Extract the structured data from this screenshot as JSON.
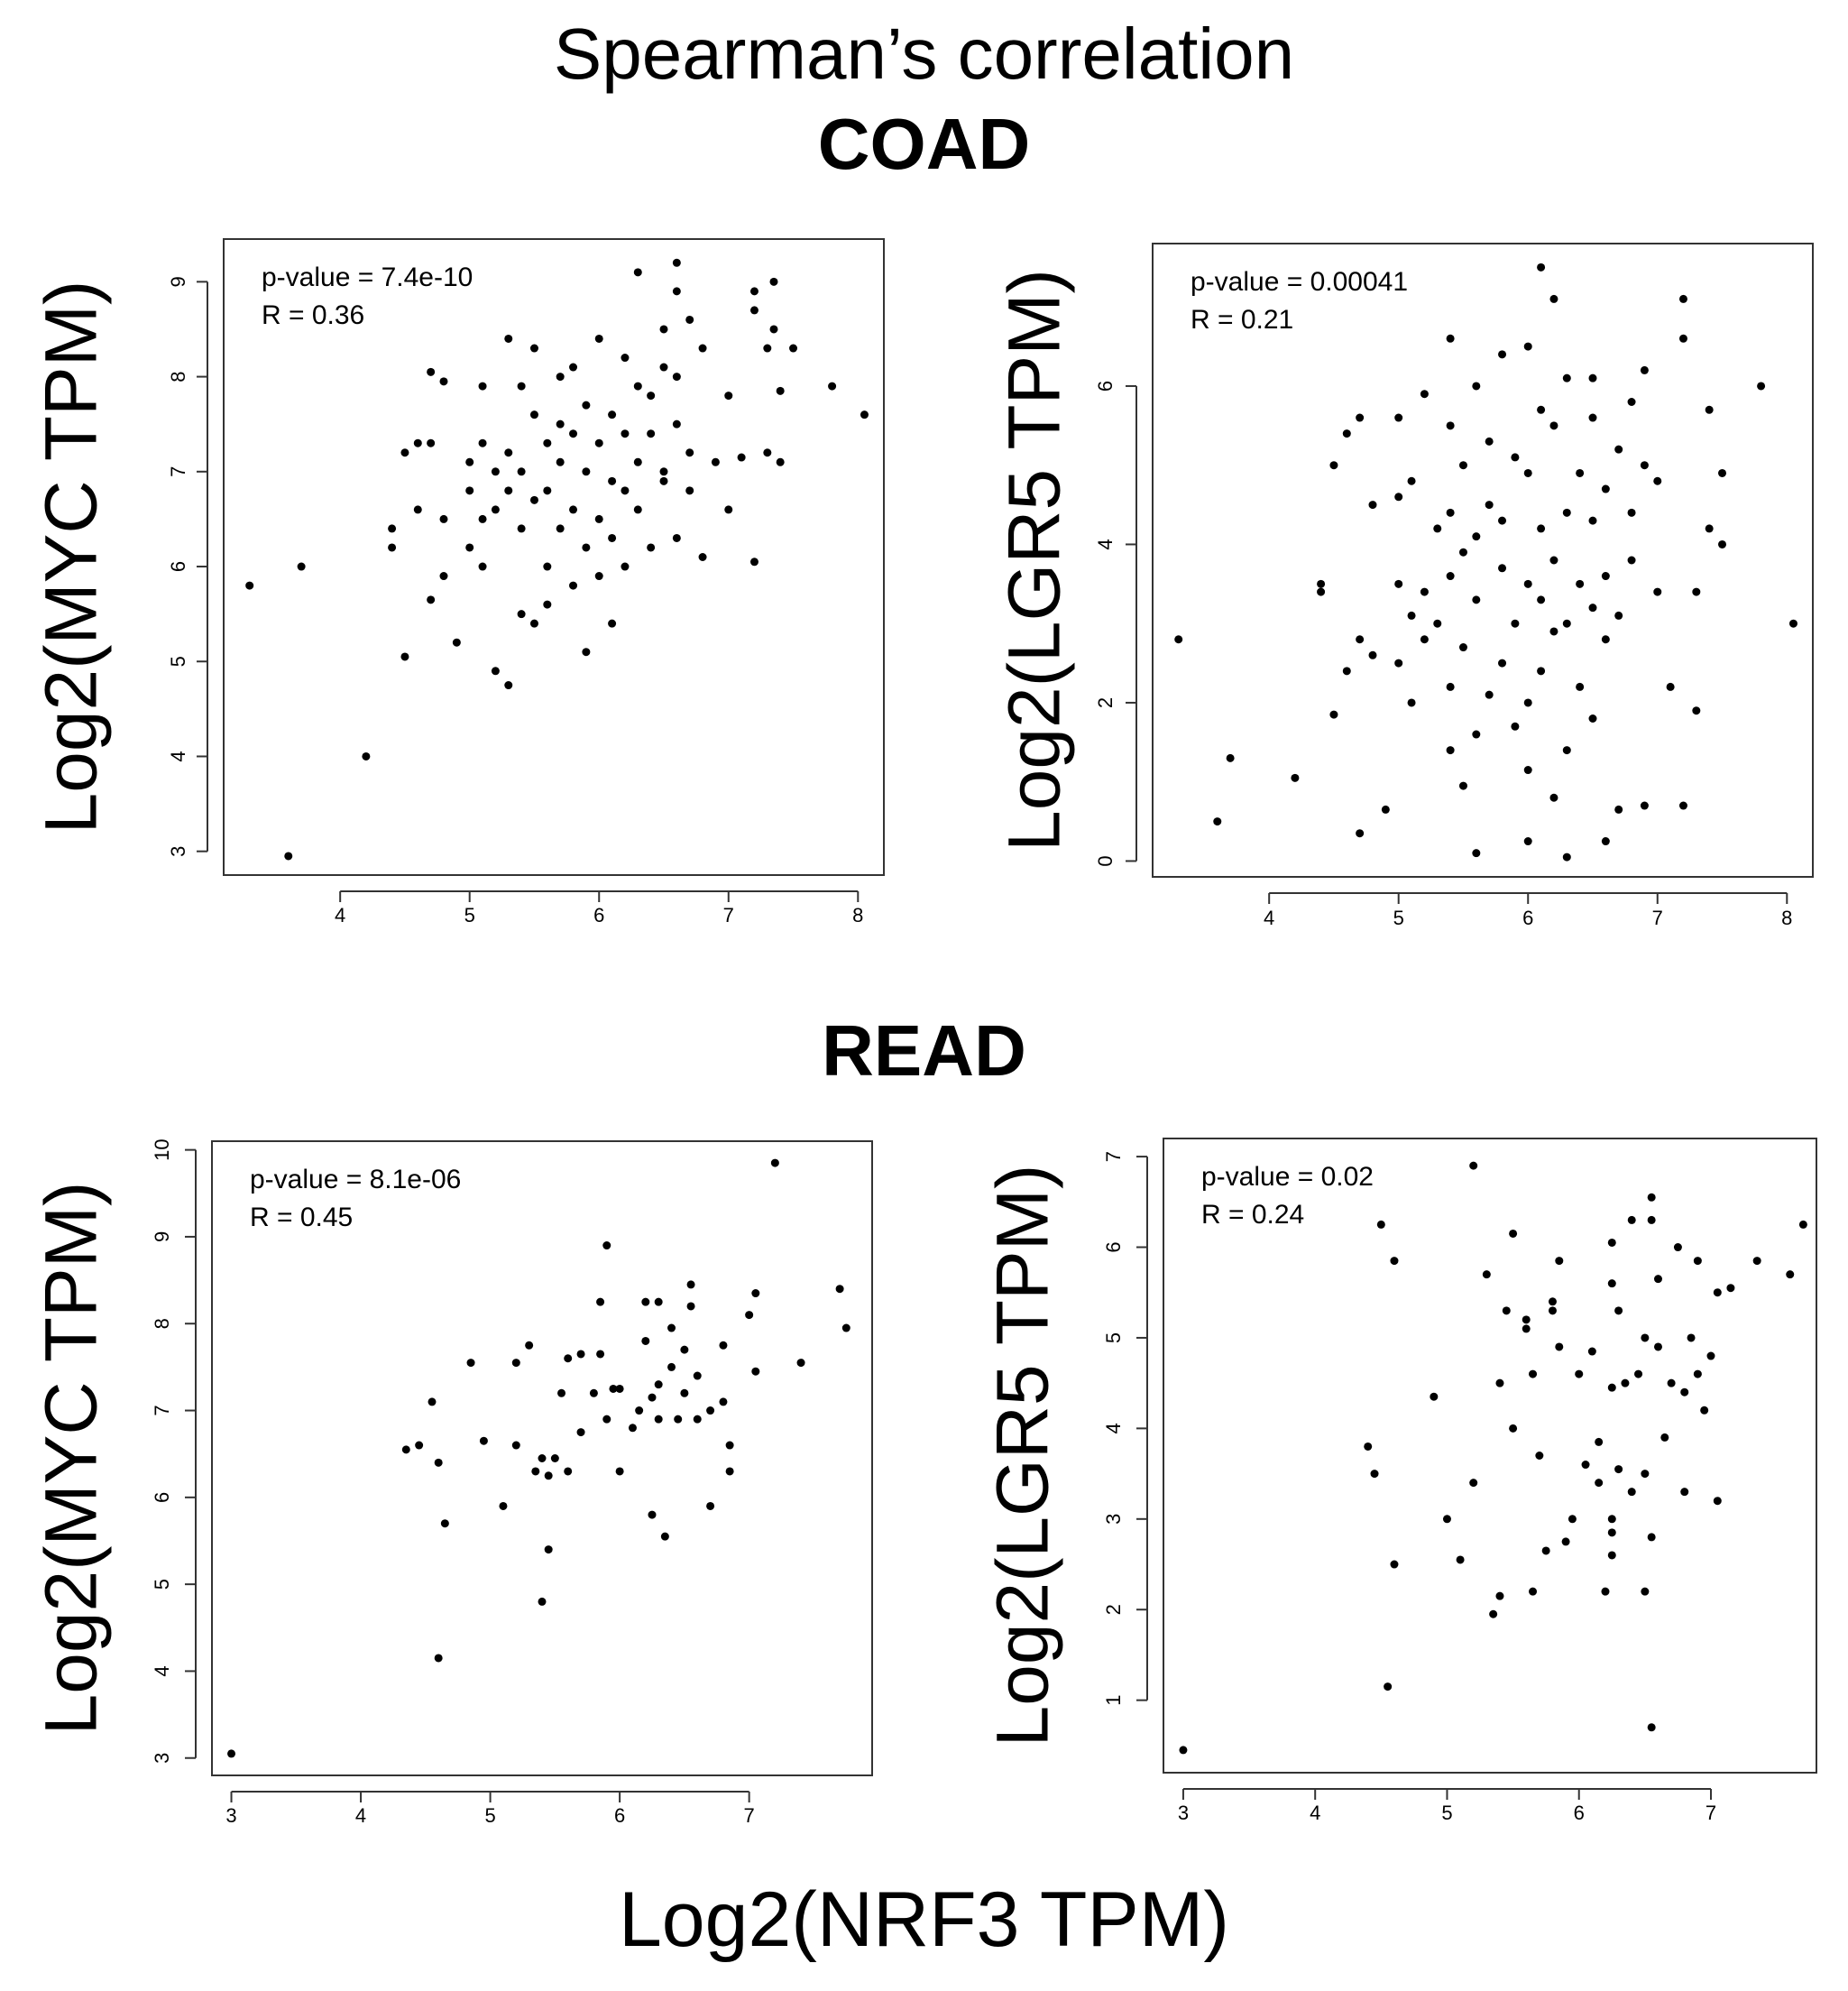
{
  "figure": {
    "title": "Spearman’s correlation",
    "section_top": "COAD",
    "section_bottom": "READ",
    "shared_xlabel": "Log2(NRF3 TPM)"
  },
  "chart_data": [
    {
      "type": "scatter",
      "group": "COAD",
      "ylabel": "Log2(MYC TPM)",
      "xlabel": "Log2(NRF3 TPM)",
      "xlim": [
        3.1,
        8.2
      ],
      "ylim": [
        2.75,
        9.45
      ],
      "xticks": [
        4,
        5,
        6,
        7,
        8
      ],
      "yticks": [
        3,
        4,
        5,
        6,
        7,
        8,
        9
      ],
      "annotation": [
        "p-value = 7.4e-10",
        "R = 0.36"
      ],
      "points": [
        [
          3.3,
          5.8
        ],
        [
          3.6,
          2.95
        ],
        [
          3.7,
          6.0
        ],
        [
          4.2,
          4.0
        ],
        [
          4.4,
          6.2
        ],
        [
          4.4,
          6.4
        ],
        [
          4.5,
          5.05
        ],
        [
          4.5,
          7.2
        ],
        [
          4.6,
          7.3
        ],
        [
          4.6,
          6.6
        ],
        [
          4.7,
          5.65
        ],
        [
          4.7,
          7.3
        ],
        [
          4.7,
          8.05
        ],
        [
          4.8,
          6.5
        ],
        [
          4.8,
          7.95
        ],
        [
          4.8,
          5.9
        ],
        [
          4.9,
          5.2
        ],
        [
          5.0,
          7.1
        ],
        [
          5.0,
          6.8
        ],
        [
          5.0,
          6.2
        ],
        [
          5.1,
          7.9
        ],
        [
          5.1,
          6.5
        ],
        [
          5.1,
          7.3
        ],
        [
          5.1,
          6.0
        ],
        [
          5.2,
          7.0
        ],
        [
          5.2,
          4.9
        ],
        [
          5.2,
          6.6
        ],
        [
          5.3,
          8.4
        ],
        [
          5.3,
          7.2
        ],
        [
          5.3,
          6.8
        ],
        [
          5.3,
          4.75
        ],
        [
          5.4,
          7.9
        ],
        [
          5.4,
          5.5
        ],
        [
          5.4,
          6.4
        ],
        [
          5.4,
          7.0
        ],
        [
          5.5,
          8.3
        ],
        [
          5.5,
          5.4
        ],
        [
          5.5,
          6.7
        ],
        [
          5.5,
          7.6
        ],
        [
          5.6,
          7.3
        ],
        [
          5.6,
          6.0
        ],
        [
          5.6,
          6.8
        ],
        [
          5.6,
          5.6
        ],
        [
          5.7,
          7.5
        ],
        [
          5.7,
          6.4
        ],
        [
          5.7,
          8.0
        ],
        [
          5.7,
          7.1
        ],
        [
          5.8,
          6.6
        ],
        [
          5.8,
          7.4
        ],
        [
          5.8,
          5.8
        ],
        [
          5.8,
          8.1
        ],
        [
          5.9,
          7.0
        ],
        [
          5.9,
          6.2
        ],
        [
          5.9,
          7.7
        ],
        [
          5.9,
          5.1
        ],
        [
          6.0,
          8.4
        ],
        [
          6.0,
          7.3
        ],
        [
          6.0,
          6.5
        ],
        [
          6.0,
          5.9
        ],
        [
          6.1,
          7.6
        ],
        [
          6.1,
          6.9
        ],
        [
          6.1,
          6.3
        ],
        [
          6.1,
          5.4
        ],
        [
          6.2,
          8.2
        ],
        [
          6.2,
          7.4
        ],
        [
          6.2,
          6.8
        ],
        [
          6.2,
          6.0
        ],
        [
          6.3,
          9.1
        ],
        [
          6.3,
          7.9
        ],
        [
          6.3,
          7.1
        ],
        [
          6.3,
          6.6
        ],
        [
          6.4,
          7.8
        ],
        [
          6.4,
          6.2
        ],
        [
          6.4,
          7.4
        ],
        [
          6.5,
          8.5
        ],
        [
          6.5,
          7.0
        ],
        [
          6.5,
          8.1
        ],
        [
          6.5,
          6.9
        ],
        [
          6.6,
          9.2
        ],
        [
          6.6,
          8.9
        ],
        [
          6.6,
          8.0
        ],
        [
          6.6,
          7.5
        ],
        [
          6.6,
          6.3
        ],
        [
          6.7,
          8.6
        ],
        [
          6.7,
          7.2
        ],
        [
          6.7,
          6.8
        ],
        [
          6.8,
          8.3
        ],
        [
          6.8,
          6.1
        ],
        [
          6.9,
          7.1
        ],
        [
          7.0,
          6.6
        ],
        [
          7.0,
          7.8
        ],
        [
          7.1,
          7.15
        ],
        [
          7.2,
          8.9
        ],
        [
          7.2,
          8.7
        ],
        [
          7.2,
          6.05
        ],
        [
          7.3,
          8.3
        ],
        [
          7.3,
          7.2
        ],
        [
          7.35,
          9.0
        ],
        [
          7.35,
          8.5
        ],
        [
          7.4,
          7.1
        ],
        [
          7.5,
          8.3
        ],
        [
          7.4,
          7.85
        ],
        [
          7.8,
          7.9
        ],
        [
          8.05,
          7.6
        ]
      ]
    },
    {
      "type": "scatter",
      "group": "COAD",
      "ylabel": "Log2(LGR5 TPM)",
      "xlabel": "Log2(NRF3 TPM)",
      "xlim": [
        3.1,
        8.2
      ],
      "ylim": [
        -0.2,
        7.8
      ],
      "xticks": [
        4,
        5,
        6,
        7,
        8
      ],
      "yticks": [
        0,
        2,
        4,
        6
      ],
      "annotation": [
        "p-value = 0.00041",
        "R = 0.21"
      ],
      "points": [
        [
          3.3,
          2.8
        ],
        [
          3.6,
          0.5
        ],
        [
          3.7,
          1.3
        ],
        [
          4.2,
          1.05
        ],
        [
          4.4,
          3.4
        ],
        [
          4.4,
          3.5
        ],
        [
          4.5,
          1.85
        ],
        [
          4.5,
          5.0
        ],
        [
          4.6,
          5.4
        ],
        [
          4.6,
          2.4
        ],
        [
          4.7,
          0.35
        ],
        [
          4.7,
          2.8
        ],
        [
          4.7,
          5.6
        ],
        [
          4.8,
          4.5
        ],
        [
          4.8,
          2.6
        ],
        [
          4.9,
          0.65
        ],
        [
          5.0,
          3.5
        ],
        [
          5.0,
          2.5
        ],
        [
          5.0,
          4.6
        ],
        [
          5.0,
          5.6
        ],
        [
          5.1,
          2.0
        ],
        [
          5.1,
          3.1
        ],
        [
          5.1,
          4.8
        ],
        [
          5.2,
          5.9
        ],
        [
          5.2,
          3.4
        ],
        [
          5.2,
          2.8
        ],
        [
          5.3,
          4.2
        ],
        [
          5.3,
          3.0
        ],
        [
          5.4,
          6.6
        ],
        [
          5.4,
          5.5
        ],
        [
          5.4,
          4.4
        ],
        [
          5.4,
          3.6
        ],
        [
          5.4,
          2.2
        ],
        [
          5.4,
          1.4
        ],
        [
          5.5,
          0.95
        ],
        [
          5.5,
          3.9
        ],
        [
          5.5,
          5.0
        ],
        [
          5.5,
          2.7
        ],
        [
          5.6,
          6.0
        ],
        [
          5.6,
          4.1
        ],
        [
          5.6,
          3.3
        ],
        [
          5.6,
          1.6
        ],
        [
          5.6,
          0.1
        ],
        [
          5.7,
          4.5
        ],
        [
          5.7,
          2.1
        ],
        [
          5.7,
          5.3
        ],
        [
          5.8,
          3.7
        ],
        [
          5.8,
          2.5
        ],
        [
          5.8,
          6.4
        ],
        [
          5.8,
          4.3
        ],
        [
          5.9,
          3.0
        ],
        [
          5.9,
          1.7
        ],
        [
          5.9,
          5.1
        ],
        [
          6.0,
          2.0
        ],
        [
          6.0,
          3.5
        ],
        [
          6.0,
          4.9
        ],
        [
          6.0,
          6.5
        ],
        [
          6.0,
          1.15
        ],
        [
          6.0,
          0.25
        ],
        [
          6.1,
          7.5
        ],
        [
          6.1,
          4.2
        ],
        [
          6.1,
          3.3
        ],
        [
          6.1,
          2.4
        ],
        [
          6.1,
          5.7
        ],
        [
          6.2,
          7.1
        ],
        [
          6.2,
          3.8
        ],
        [
          6.2,
          2.9
        ],
        [
          6.2,
          5.5
        ],
        [
          6.2,
          0.8
        ],
        [
          6.3,
          4.4
        ],
        [
          6.3,
          1.4
        ],
        [
          6.3,
          3.0
        ],
        [
          6.3,
          6.1
        ],
        [
          6.3,
          0.05
        ],
        [
          6.4,
          3.5
        ],
        [
          6.4,
          2.2
        ],
        [
          6.4,
          4.9
        ],
        [
          6.5,
          5.6
        ],
        [
          6.5,
          4.3
        ],
        [
          6.5,
          3.2
        ],
        [
          6.5,
          1.8
        ],
        [
          6.5,
          6.1
        ],
        [
          6.6,
          4.7
        ],
        [
          6.6,
          3.6
        ],
        [
          6.6,
          2.8
        ],
        [
          6.6,
          0.25
        ],
        [
          6.7,
          5.2
        ],
        [
          6.7,
          3.1
        ],
        [
          6.7,
          0.65
        ],
        [
          6.8,
          5.8
        ],
        [
          6.8,
          4.4
        ],
        [
          6.8,
          3.8
        ],
        [
          6.9,
          5.0
        ],
        [
          6.9,
          6.2
        ],
        [
          6.9,
          0.7
        ],
        [
          7.0,
          3.4
        ],
        [
          7.0,
          4.8
        ],
        [
          7.1,
          2.2
        ],
        [
          7.2,
          7.1
        ],
        [
          7.2,
          6.6
        ],
        [
          7.2,
          0.7
        ],
        [
          7.3,
          3.4
        ],
        [
          7.3,
          1.9
        ],
        [
          7.4,
          4.2
        ],
        [
          7.4,
          5.7
        ],
        [
          7.5,
          4.9
        ],
        [
          7.5,
          4.0
        ],
        [
          7.8,
          6.0
        ],
        [
          8.05,
          3.0
        ]
      ]
    },
    {
      "type": "scatter",
      "group": "READ",
      "ylabel": "Log2(MYC TPM)",
      "xlabel": "Log2(NRF3 TPM)",
      "xlim": [
        2.85,
        7.95
      ],
      "ylim": [
        2.8,
        10.1
      ],
      "xticks": [
        3,
        4,
        5,
        6,
        7
      ],
      "yticks": [
        3,
        4,
        5,
        6,
        7,
        8,
        9,
        10
      ],
      "annotation": [
        "p-value = 8.1e-06",
        "R = 0.45"
      ],
      "points": [
        [
          3.0,
          3.05
        ],
        [
          4.35,
          6.55
        ],
        [
          4.45,
          6.6
        ],
        [
          4.55,
          7.1
        ],
        [
          4.6,
          6.4
        ],
        [
          4.65,
          5.7
        ],
        [
          4.6,
          4.15
        ],
        [
          4.85,
          7.55
        ],
        [
          4.95,
          6.65
        ],
        [
          5.1,
          5.9
        ],
        [
          5.2,
          7.55
        ],
        [
          5.2,
          6.6
        ],
        [
          5.3,
          7.75
        ],
        [
          5.35,
          6.3
        ],
        [
          5.4,
          6.45
        ],
        [
          5.4,
          4.8
        ],
        [
          5.45,
          5.4
        ],
        [
          5.45,
          6.25
        ],
        [
          5.5,
          6.45
        ],
        [
          5.55,
          7.2
        ],
        [
          5.6,
          6.3
        ],
        [
          5.6,
          7.6
        ],
        [
          5.7,
          7.65
        ],
        [
          5.7,
          6.75
        ],
        [
          5.8,
          7.2
        ],
        [
          5.85,
          8.25
        ],
        [
          5.85,
          7.65
        ],
        [
          5.9,
          8.9
        ],
        [
          5.9,
          6.9
        ],
        [
          5.95,
          7.25
        ],
        [
          6.0,
          6.3
        ],
        [
          6.0,
          7.25
        ],
        [
          6.1,
          6.8
        ],
        [
          6.15,
          7.0
        ],
        [
          6.2,
          8.25
        ],
        [
          6.2,
          7.8
        ],
        [
          6.25,
          7.15
        ],
        [
          6.25,
          5.8
        ],
        [
          6.3,
          8.25
        ],
        [
          6.3,
          7.3
        ],
        [
          6.3,
          6.9
        ],
        [
          6.35,
          5.55
        ],
        [
          6.4,
          7.95
        ],
        [
          6.4,
          7.5
        ],
        [
          6.45,
          6.9
        ],
        [
          6.5,
          7.7
        ],
        [
          6.5,
          7.2
        ],
        [
          6.55,
          8.45
        ],
        [
          6.55,
          8.2
        ],
        [
          6.6,
          7.4
        ],
        [
          6.6,
          6.9
        ],
        [
          6.7,
          7.0
        ],
        [
          6.7,
          5.9
        ],
        [
          6.8,
          7.75
        ],
        [
          6.8,
          7.1
        ],
        [
          6.85,
          6.6
        ],
        [
          6.85,
          6.3
        ],
        [
          7.0,
          8.1
        ],
        [
          7.05,
          8.35
        ],
        [
          7.05,
          7.45
        ],
        [
          7.2,
          9.85
        ],
        [
          7.4,
          7.55
        ],
        [
          7.7,
          8.4
        ],
        [
          7.75,
          7.95
        ]
      ]
    },
    {
      "type": "scatter",
      "group": "READ",
      "ylabel": "Log2(LGR5 TPM)",
      "xlabel": "Log2(NRF3 TPM)",
      "xlim": [
        2.85,
        7.8
      ],
      "ylim": [
        0.2,
        7.2
      ],
      "xticks": [
        3,
        4,
        5,
        6,
        7
      ],
      "yticks": [
        1,
        2,
        3,
        4,
        5,
        6,
        7
      ],
      "annotation": [
        "p-value = 0.02",
        "R = 0.24"
      ],
      "points": [
        [
          3.0,
          0.45
        ],
        [
          4.4,
          3.8
        ],
        [
          4.45,
          3.5
        ],
        [
          4.5,
          6.25
        ],
        [
          4.55,
          1.15
        ],
        [
          4.6,
          2.5
        ],
        [
          4.6,
          5.85
        ],
        [
          4.9,
          4.35
        ],
        [
          5.0,
          3.0
        ],
        [
          5.1,
          2.55
        ],
        [
          5.2,
          6.9
        ],
        [
          5.2,
          3.4
        ],
        [
          5.3,
          5.7
        ],
        [
          5.35,
          1.95
        ],
        [
          5.4,
          2.15
        ],
        [
          5.4,
          4.5
        ],
        [
          5.45,
          5.3
        ],
        [
          5.5,
          6.15
        ],
        [
          5.5,
          4.0
        ],
        [
          5.6,
          5.2
        ],
        [
          5.6,
          5.1
        ],
        [
          5.65,
          2.2
        ],
        [
          5.65,
          4.6
        ],
        [
          5.7,
          3.7
        ],
        [
          5.75,
          2.65
        ],
        [
          5.8,
          5.3
        ],
        [
          5.8,
          5.4
        ],
        [
          5.85,
          5.85
        ],
        [
          5.85,
          4.9
        ],
        [
          5.9,
          2.75
        ],
        [
          5.95,
          3.0
        ],
        [
          6.0,
          4.6
        ],
        [
          6.05,
          3.6
        ],
        [
          6.1,
          4.85
        ],
        [
          6.15,
          3.4
        ],
        [
          6.15,
          3.85
        ],
        [
          6.2,
          2.2
        ],
        [
          6.25,
          6.05
        ],
        [
          6.25,
          5.6
        ],
        [
          6.25,
          4.45
        ],
        [
          6.25,
          3.0
        ],
        [
          6.25,
          2.85
        ],
        [
          6.25,
          2.6
        ],
        [
          6.3,
          5.3
        ],
        [
          6.3,
          3.55
        ],
        [
          6.35,
          4.5
        ],
        [
          6.4,
          6.3
        ],
        [
          6.4,
          3.3
        ],
        [
          6.45,
          4.6
        ],
        [
          6.5,
          5.0
        ],
        [
          6.5,
          3.5
        ],
        [
          6.5,
          2.2
        ],
        [
          6.55,
          6.55
        ],
        [
          6.55,
          6.3
        ],
        [
          6.55,
          2.8
        ],
        [
          6.55,
          0.7
        ],
        [
          6.6,
          5.65
        ],
        [
          6.6,
          4.9
        ],
        [
          6.65,
          3.9
        ],
        [
          6.7,
          4.5
        ],
        [
          6.75,
          6.0
        ],
        [
          6.8,
          4.4
        ],
        [
          6.8,
          3.3
        ],
        [
          6.85,
          5.0
        ],
        [
          6.9,
          5.85
        ],
        [
          6.9,
          4.6
        ],
        [
          6.95,
          4.2
        ],
        [
          7.0,
          4.8
        ],
        [
          7.05,
          5.5
        ],
        [
          7.05,
          3.2
        ],
        [
          7.15,
          5.55
        ],
        [
          7.35,
          5.85
        ],
        [
          7.6,
          5.7
        ],
        [
          7.7,
          6.25
        ]
      ]
    }
  ]
}
